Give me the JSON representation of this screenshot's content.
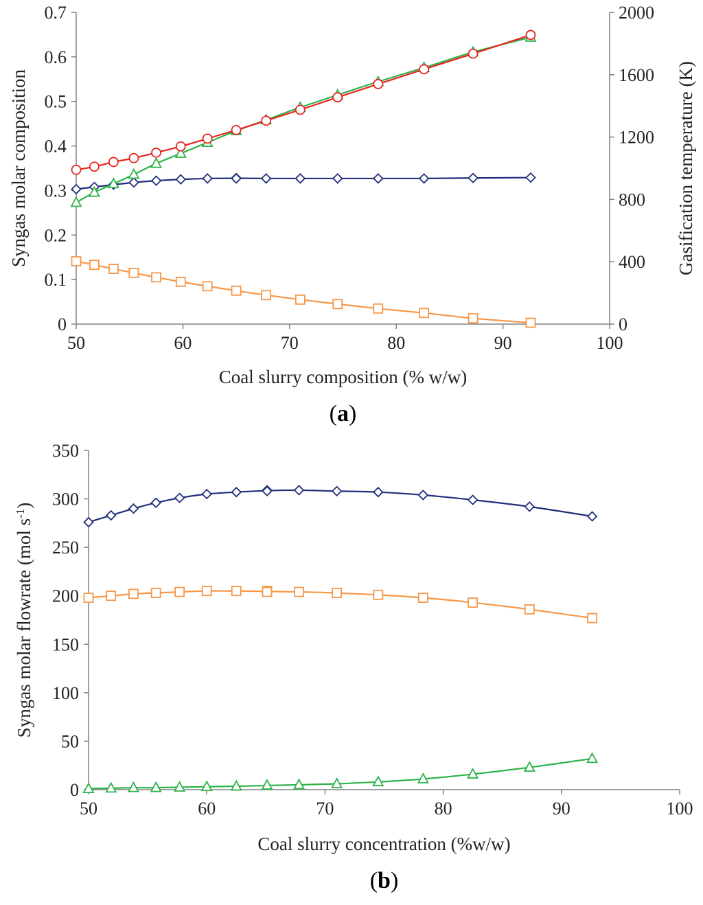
{
  "chart_data": [
    {
      "panel": "a",
      "panel_label": "a",
      "type": "line",
      "xlabel": "Coal slurry composition (% w/w)",
      "ylabel": "Syngas molar composition",
      "y2label": "Gasification temperature (K)",
      "xlim": [
        50,
        100
      ],
      "ylim": [
        0,
        0.7
      ],
      "y2lim": [
        0,
        2000
      ],
      "x_ticks": [
        "50",
        "60",
        "70",
        "80",
        "90",
        "100"
      ],
      "y_ticks": [
        "0",
        "0.1",
        "0.2",
        "0.3",
        "0.4",
        "0.5",
        "0.6",
        "0.7"
      ],
      "y2_ticks": [
        "0",
        "400",
        "800",
        "1200",
        "1600",
        "2000"
      ],
      "series": [
        {
          "name": "blue-diamond",
          "color": "#1f2f7a",
          "marker": "diamond",
          "axis": "left",
          "x": [
            50,
            51.7,
            53.5,
            55.4,
            57.5,
            59.8,
            62.3,
            65,
            65,
            67.8,
            71,
            74.5,
            78.3,
            82.6,
            87.2,
            92.6
          ],
          "y": [
            0.303,
            0.308,
            0.313,
            0.318,
            0.322,
            0.325,
            0.327,
            0.328,
            0.327,
            0.327,
            0.327,
            0.327,
            0.327,
            0.327,
            0.328,
            0.329
          ]
        },
        {
          "name": "orange-square",
          "color": "#f79646",
          "marker": "square",
          "axis": "left",
          "x": [
            50,
            51.7,
            53.5,
            55.4,
            57.5,
            59.8,
            62.3,
            65,
            67.8,
            71,
            74.5,
            78.3,
            82.6,
            87.2,
            92.6
          ],
          "y": [
            0.141,
            0.133,
            0.124,
            0.115,
            0.105,
            0.095,
            0.085,
            0.075,
            0.065,
            0.055,
            0.045,
            0.035,
            0.025,
            0.013,
            0.003
          ]
        },
        {
          "name": "green-triangle",
          "color": "#2db34a",
          "marker": "triangle",
          "axis": "right",
          "x": [
            50,
            51.7,
            53.5,
            55.4,
            57.5,
            59.8,
            62.3,
            65,
            67.8,
            71,
            74.5,
            78.3,
            82.6,
            87.2,
            92.6
          ],
          "y": [
            780,
            845,
            900,
            960,
            1030,
            1095,
            1165,
            1240,
            1310,
            1390,
            1470,
            1555,
            1645,
            1745,
            1840
          ]
        },
        {
          "name": "red-circle",
          "color": "#e8231f",
          "marker": "circle",
          "axis": "right",
          "x": [
            50,
            51.7,
            53.5,
            55.4,
            57.5,
            59.8,
            62.3,
            65,
            67.8,
            71,
            74.5,
            78.3,
            82.6,
            87.2,
            92.6
          ],
          "y": [
            990,
            1010,
            1040,
            1065,
            1100,
            1140,
            1190,
            1245,
            1305,
            1375,
            1455,
            1540,
            1635,
            1735,
            1855
          ]
        }
      ]
    },
    {
      "panel": "b",
      "panel_label": "b",
      "type": "line",
      "xlabel": "Coal slurry concentration (%w/w)",
      "ylabel": "Syngas molar flowrate (mol s",
      "ylabel_sup": "-1",
      "ylabel_end": ")",
      "xlim": [
        50,
        100
      ],
      "ylim": [
        0,
        350
      ],
      "x_ticks": [
        "50",
        "60",
        "70",
        "80",
        "90",
        "100"
      ],
      "y_ticks": [
        "0",
        "50",
        "100",
        "150",
        "200",
        "250",
        "300",
        "350"
      ],
      "series": [
        {
          "name": "blue-diamond",
          "color": "#1f2f7a",
          "marker": "diamond",
          "x": [
            50,
            51.9,
            53.8,
            55.7,
            57.7,
            60,
            62.5,
            65.1,
            65.1,
            67.8,
            71,
            74.5,
            78.3,
            82.5,
            87.3,
            92.6
          ],
          "y": [
            276,
            283,
            290,
            296,
            301,
            305,
            307,
            309,
            308,
            309,
            308,
            307,
            304,
            299,
            292,
            282
          ]
        },
        {
          "name": "orange-square",
          "color": "#f79646",
          "marker": "square",
          "x": [
            50,
            51.9,
            53.8,
            55.7,
            57.7,
            60,
            62.5,
            65.1,
            65.1,
            67.8,
            71,
            74.5,
            78.3,
            82.5,
            87.3,
            92.6
          ],
          "y": [
            198,
            200,
            202,
            203,
            204,
            205,
            205,
            205,
            204,
            204,
            203,
            201,
            198,
            193,
            186,
            177
          ]
        },
        {
          "name": "green-triangle",
          "color": "#2db34a",
          "marker": "triangle",
          "x": [
            50,
            51.9,
            53.8,
            55.7,
            57.7,
            60,
            62.5,
            65.1,
            65.1,
            67.8,
            71,
            74.5,
            78.3,
            82.5,
            87.3,
            92.6
          ],
          "y": [
            1,
            1.5,
            2,
            2,
            2.5,
            3,
            3.5,
            4,
            4.5,
            5,
            6,
            8,
            11,
            16,
            23,
            32
          ]
        }
      ]
    }
  ]
}
